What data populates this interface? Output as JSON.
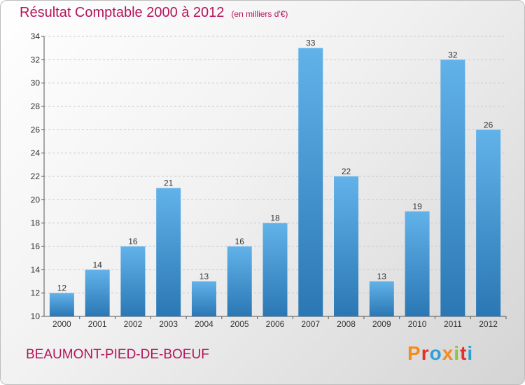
{
  "title": "Résultat Comptable 2000 à 2012",
  "unit_note": "(en milliers d'€)",
  "commune": "BEAUMONT-PIED-DE-BOEUF",
  "brand": "Proxiti",
  "colors": {
    "title": "#b5135b",
    "bar_light": "#62b2ea",
    "bar_dark": "#2a77b4",
    "logo": [
      "#f28c1f",
      "#e0322b",
      "#2f9fd6",
      "#f28c1f",
      "#8cc63f",
      "#e0322b",
      "#2f9fd6"
    ]
  },
  "chart_data": {
    "type": "bar",
    "title": "Résultat Comptable 2000 à 2012",
    "xlabel": "",
    "ylabel": "en milliers d'€",
    "categories": [
      "2000",
      "2001",
      "2002",
      "2003",
      "2004",
      "2005",
      "2006",
      "2007",
      "2008",
      "2009",
      "2010",
      "2011",
      "2012"
    ],
    "values": [
      12,
      14,
      16,
      21,
      13,
      16,
      18,
      33,
      22,
      13,
      19,
      32,
      26
    ],
    "ylim": [
      10,
      34
    ],
    "yticks": [
      10,
      12,
      14,
      16,
      18,
      20,
      22,
      24,
      26,
      28,
      30,
      32,
      34
    ],
    "grid": "horizontal-dashed",
    "legend": "none"
  }
}
